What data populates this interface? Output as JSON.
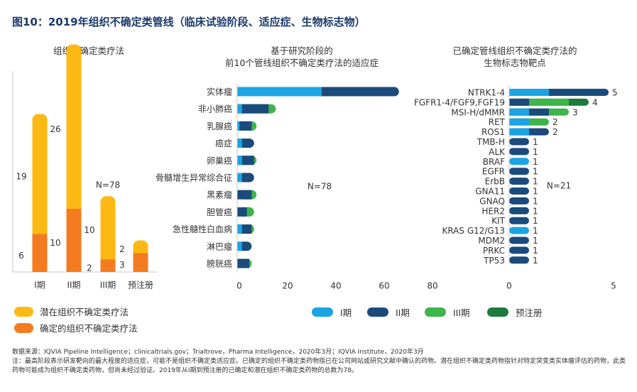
{
  "figure_title": "图10：2019年组织不确定类管线（临床试验阶段、适应症、生物标志物）",
  "colors": {
    "latent": "#FDB913",
    "confirmed": "#F47B20",
    "phase1": "#1BA4E3",
    "phase2": "#1B4A7C",
    "phase3": "#3DB54A",
    "prereg": "#1E7A3C"
  },
  "chart_data": [
    {
      "type": "bar",
      "stacked": true,
      "title": "组织不确定类疗法",
      "categories": [
        "I期",
        "II期",
        "III期",
        "预注册"
      ],
      "series": [
        {
          "name": "确定的组织不确定类疗法",
          "values": [
            6,
            10,
            2,
            3
          ]
        },
        {
          "name": "潜在组织不确定类疗法",
          "values": [
            19,
            26,
            10,
            2
          ]
        }
      ],
      "annotation": "N=78"
    },
    {
      "type": "bar",
      "orientation": "horizontal",
      "stacked": true,
      "title_lines": [
        "基于研究阶段的",
        "前10个管线组织不确定类疗法的适应症"
      ],
      "categories": [
        "实体瘤",
        "非小肺癌",
        "乳腺癌",
        "癌症",
        "卵巢癌",
        "骨髓增生异常综合征",
        "黑素瘤",
        "胆管癌",
        "急性髓性白血病",
        "淋巴瘤",
        "膀胱癌"
      ],
      "series": [
        {
          "name": "I期",
          "values": [
            35,
            2,
            1,
            2,
            2,
            2,
            0,
            0,
            2,
            2,
            0
          ]
        },
        {
          "name": "II期",
          "values": [
            32,
            11,
            5,
            5,
            5,
            5,
            6,
            4,
            4,
            4,
            5
          ]
        },
        {
          "name": "III期",
          "values": [
            0,
            3,
            2,
            0,
            1,
            0,
            2,
            3,
            1,
            0,
            1
          ]
        },
        {
          "name": "预注册",
          "values": [
            0,
            0,
            0,
            0,
            0,
            0,
            0,
            0,
            0,
            0,
            0
          ]
        }
      ],
      "xticks": [
        "0",
        "20",
        "40",
        "60",
        "80"
      ],
      "xlim": [
        0,
        80
      ],
      "annotation": "N=78"
    },
    {
      "type": "bar",
      "orientation": "horizontal",
      "stacked": true,
      "title_lines": [
        "已确定管线组织不确定类疗法的",
        "生物标志物靶点"
      ],
      "categories": [
        "NTRK1-4",
        "FGFR1-4/FGF9,FGF19",
        "MSI-H/dMMR",
        "RET",
        "ROS1",
        "TMB-H",
        "ALK",
        "BRAF",
        "EGFR",
        "ErbB",
        "GNA11",
        "GNAQ",
        "HER2",
        "KIT",
        "KRAS G12/G13",
        "MDM2",
        "PRKC",
        "TP53"
      ],
      "series": [
        {
          "name": "I期",
          "values": [
            2,
            0,
            1,
            1,
            1,
            0,
            0,
            1,
            0,
            0,
            0,
            0,
            0,
            0,
            1,
            0,
            0,
            0
          ]
        },
        {
          "name": "II期",
          "values": [
            3,
            1,
            1,
            0,
            1,
            1,
            1,
            0,
            1,
            1,
            1,
            1,
            1,
            1,
            0,
            1,
            1,
            1
          ]
        },
        {
          "name": "III期",
          "values": [
            0,
            2,
            1,
            1,
            0,
            0,
            0,
            0,
            0,
            0,
            0,
            0,
            0,
            0,
            0,
            0,
            0,
            0
          ]
        },
        {
          "name": "预注册",
          "values": [
            0,
            1,
            0,
            0,
            0,
            0,
            0,
            0,
            0,
            0,
            0,
            0,
            0,
            0,
            0,
            0,
            0,
            0
          ]
        }
      ],
      "totals": [
        5,
        4,
        3,
        2,
        2,
        1,
        1,
        1,
        1,
        1,
        1,
        1,
        1,
        1,
        1,
        1,
        1,
        1
      ],
      "xticks": [
        "0",
        "5"
      ],
      "xlim": [
        0,
        5
      ],
      "annotation": "N=21"
    }
  ],
  "legend_left": [
    {
      "label": "潜在组织不确定类疗法",
      "color": "#FDB913"
    },
    {
      "label": "确定的组织不确定类疗法",
      "color": "#F47B20"
    }
  ],
  "legend_bottom": [
    {
      "label": "I期",
      "color": "#1BA4E3"
    },
    {
      "label": "II期",
      "color": "#1B4A7C"
    },
    {
      "label": "III期",
      "color": "#3DB54A"
    },
    {
      "label": "预注册",
      "color": "#1E7A3C"
    }
  ],
  "footer": {
    "source": "数据来源：IQVIA Pipeline Intelligence；clinicaltrials.gov；Trialtrove，Pharma Intelligence，2020年3月；IQVIA Institute，2020年3月",
    "note": "注：最高阶段表示研发靶向的最大程度的适应症，可能不是组织不确定类适应症。已确定的组织不确定类药物指已在公司网站或研究文献中确认的药物。潜在组织不确定类药物指针对特定突变类实体瘤评估的药物，此类药物可能成为组织不确定类药物，但尚未经过验证。2019年从I期到预注册的已确定和潜在组织不确定类药物的总数为78。"
  }
}
